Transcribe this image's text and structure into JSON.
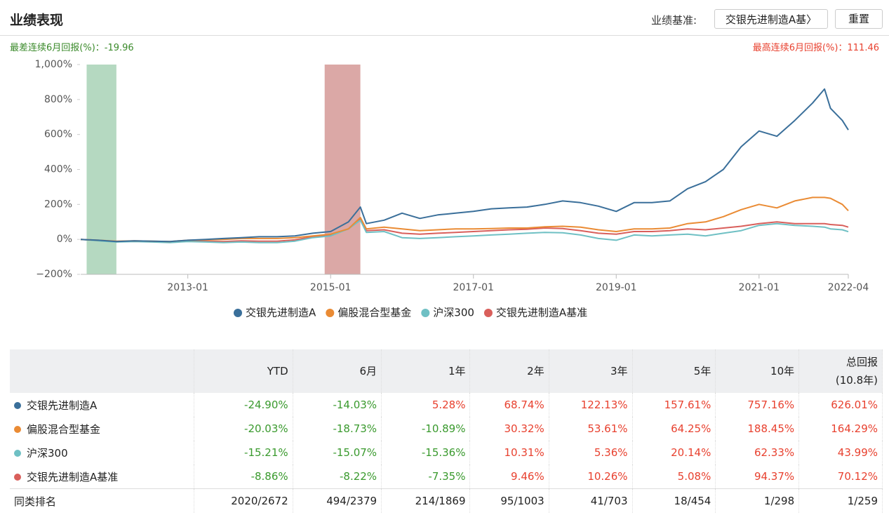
{
  "header": {
    "title": "业绩表现",
    "benchmark_label": "业绩基准:",
    "benchmark_select": "交银先进制造A基〉",
    "reset": "重置"
  },
  "chart_data": {
    "type": "line",
    "worst": {
      "label": "最差连续6月回报(%)：",
      "value": -19.96,
      "start": "2011-08",
      "end": "2012-01",
      "color": "#b5d9c1"
    },
    "best": {
      "label": "最高连续6月回报(%)：",
      "value": 111.46,
      "start": "2014-12",
      "end": "2015-06",
      "color": "#dba8a6"
    },
    "x": [
      "2011-07",
      "2011-10",
      "2012-01",
      "2012-04",
      "2012-07",
      "2012-10",
      "2013-01",
      "2013-04",
      "2013-07",
      "2013-10",
      "2014-01",
      "2014-04",
      "2014-07",
      "2014-10",
      "2015-01",
      "2015-04",
      "2015-06",
      "2015-07",
      "2015-10",
      "2016-01",
      "2016-04",
      "2016-07",
      "2016-10",
      "2017-01",
      "2017-04",
      "2017-07",
      "2017-10",
      "2018-01",
      "2018-04",
      "2018-07",
      "2018-10",
      "2019-01",
      "2019-04",
      "2019-07",
      "2019-10",
      "2020-01",
      "2020-04",
      "2020-07",
      "2020-10",
      "2021-01",
      "2021-04",
      "2021-07",
      "2021-10",
      "2021-12",
      "2022-01",
      "2022-03",
      "2022-04"
    ],
    "xlim": [
      "2011-07",
      "2022-04"
    ],
    "xticks": [
      "2013-01",
      "2015-01",
      "2017-01",
      "2019-01",
      "2021-01",
      "2022-04"
    ],
    "ylim": [
      -200,
      1000
    ],
    "yticks": [
      {
        "value": 1000,
        "label": "1,000%"
      },
      {
        "value": 800,
        "label": "800%"
      },
      {
        "value": 600,
        "label": "600%"
      },
      {
        "value": 400,
        "label": "400%"
      },
      {
        "value": 200,
        "label": "200%"
      },
      {
        "value": 0,
        "label": "0%"
      },
      {
        "value": -200,
        "label": "−200%"
      }
    ],
    "grid": false,
    "series": [
      {
        "name": "交银先进制造A",
        "color": "#3a6f9a",
        "values": [
          0,
          -5,
          -12,
          -8,
          -10,
          -12,
          -5,
          0,
          5,
          10,
          15,
          15,
          20,
          35,
          45,
          100,
          185,
          90,
          110,
          150,
          120,
          140,
          150,
          160,
          175,
          180,
          185,
          200,
          220,
          210,
          190,
          160,
          210,
          210,
          220,
          290,
          330,
          400,
          530,
          620,
          590,
          680,
          780,
          860,
          750,
          680,
          626
        ]
      },
      {
        "name": "偏股混合型基金",
        "color": "#ea8b34",
        "values": [
          0,
          -5,
          -10,
          -8,
          -10,
          -12,
          -5,
          -3,
          0,
          5,
          5,
          5,
          10,
          20,
          30,
          60,
          125,
          60,
          70,
          60,
          50,
          55,
          60,
          60,
          62,
          65,
          65,
          72,
          75,
          70,
          55,
          45,
          60,
          60,
          65,
          90,
          100,
          130,
          170,
          200,
          180,
          220,
          240,
          240,
          235,
          200,
          164
        ]
      },
      {
        "name": "沪深300",
        "color": "#6fc0c4",
        "values": [
          0,
          -8,
          -15,
          -12,
          -15,
          -18,
          -12,
          -15,
          -18,
          -15,
          -18,
          -18,
          -10,
          10,
          20,
          60,
          110,
          40,
          45,
          10,
          5,
          10,
          15,
          20,
          25,
          30,
          35,
          40,
          38,
          25,
          5,
          -5,
          25,
          20,
          25,
          30,
          20,
          35,
          50,
          80,
          90,
          80,
          75,
          70,
          60,
          55,
          44
        ]
      },
      {
        "name": "交银先进制造A基准",
        "color": "#d95f5b",
        "values": [
          0,
          -6,
          -13,
          -10,
          -13,
          -15,
          -8,
          -10,
          -12,
          -8,
          -10,
          -10,
          -3,
          15,
          25,
          60,
          115,
          50,
          55,
          35,
          30,
          35,
          40,
          45,
          50,
          55,
          58,
          65,
          62,
          50,
          35,
          30,
          45,
          45,
          50,
          60,
          55,
          65,
          75,
          90,
          100,
          90,
          90,
          90,
          85,
          80,
          70
        ]
      }
    ]
  },
  "table": {
    "columns": [
      "YTD",
      "6月",
      "1年",
      "2年",
      "3年",
      "5年",
      "10年",
      "总回报",
      "(10.8年)"
    ],
    "rows": [
      {
        "name": "交银先进制造A",
        "color": "#3a6f9a",
        "values": [
          "-24.90%",
          "-14.03%",
          "5.28%",
          "68.74%",
          "122.13%",
          "157.61%",
          "757.16%",
          "626.01%"
        ]
      },
      {
        "name": "偏股混合型基金",
        "color": "#ea8b34",
        "values": [
          "-20.03%",
          "-18.73%",
          "-10.89%",
          "30.32%",
          "53.61%",
          "64.25%",
          "188.45%",
          "164.29%"
        ]
      },
      {
        "name": "沪深300",
        "color": "#6fc0c4",
        "values": [
          "-15.21%",
          "-15.07%",
          "-15.36%",
          "10.31%",
          "5.36%",
          "20.14%",
          "62.33%",
          "43.99%"
        ]
      },
      {
        "name": "交银先进制造A基准",
        "color": "#d95f5b",
        "values": [
          "-8.86%",
          "-8.22%",
          "-7.35%",
          "9.46%",
          "10.26%",
          "5.08%",
          "94.37%",
          "70.12%"
        ]
      }
    ],
    "rank": {
      "name": "同类排名",
      "values": [
        "2020/2672",
        "494/2379",
        "214/1869",
        "95/1003",
        "41/703",
        "18/454",
        "1/298",
        "1/259"
      ]
    }
  }
}
